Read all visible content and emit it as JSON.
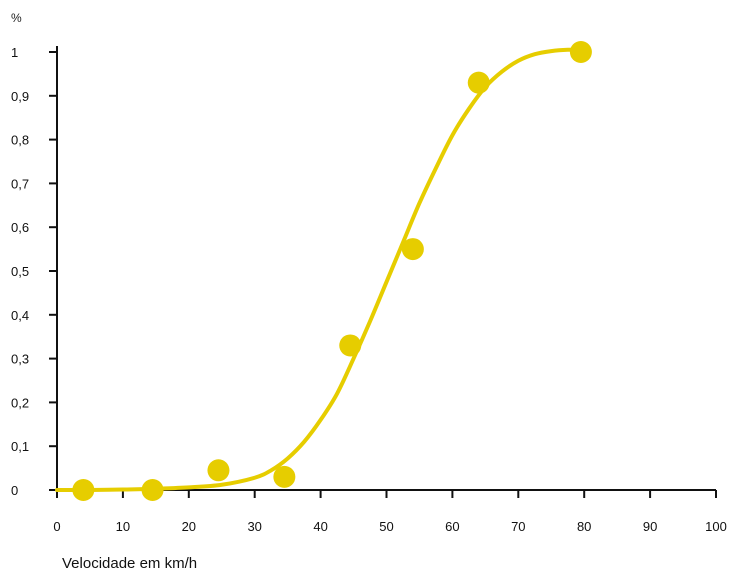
{
  "chart_data": {
    "type": "scatter",
    "title": "",
    "xlabel": "Velocidade em km/h",
    "ylabel": "%",
    "xlim": [
      0,
      100
    ],
    "ylim": [
      0,
      1
    ],
    "x_ticks": [
      0,
      10,
      20,
      30,
      40,
      50,
      60,
      70,
      80,
      90,
      100
    ],
    "y_ticks": [
      0,
      0.1,
      0.2,
      0.3,
      0.4,
      0.5,
      0.6,
      0.7,
      0.8,
      0.9,
      1
    ],
    "x_tick_labels": [
      "0",
      "10",
      "20",
      "30",
      "40",
      "50",
      "60",
      "70",
      "80",
      "90",
      "100"
    ],
    "y_tick_labels": [
      "0",
      "0,1",
      "0,2",
      "0,3",
      "0,4",
      "0,5",
      "0,6",
      "0,7",
      "0,8",
      "0,9",
      "1"
    ],
    "grid": false,
    "colors": {
      "marker": "#E6CD00",
      "curve": "#E6CD00",
      "axis": "#111111"
    },
    "series": [
      {
        "kind": "points",
        "x": [
          4,
          14.5,
          24.5,
          34.5,
          44.5,
          54,
          64,
          79.5
        ],
        "y": [
          0.0,
          0.0,
          0.045,
          0.03,
          0.33,
          0.55,
          0.93,
          1.0
        ]
      },
      {
        "kind": "fitted-curve",
        "x": [
          0,
          5,
          10,
          15,
          20,
          25,
          30,
          32.5,
          35,
          37.5,
          40,
          42.5,
          45,
          47.5,
          50,
          52.5,
          55,
          57.5,
          60,
          62.5,
          65,
          67.5,
          70,
          72.5,
          75,
          77.5,
          80
        ],
        "y": [
          0.0,
          0.0,
          0.001,
          0.003,
          0.006,
          0.012,
          0.028,
          0.045,
          0.072,
          0.11,
          0.16,
          0.22,
          0.3,
          0.385,
          0.475,
          0.565,
          0.655,
          0.735,
          0.81,
          0.87,
          0.92,
          0.955,
          0.98,
          0.995,
          1.002,
          1.005,
          1.005
        ]
      }
    ]
  }
}
